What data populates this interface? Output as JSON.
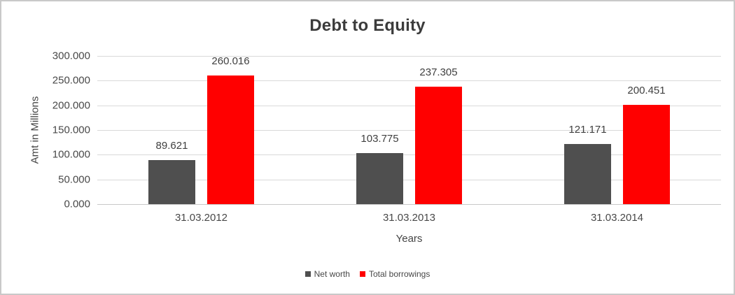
{
  "frame": {
    "border_color": "#c9c9c9",
    "background": "#ffffff"
  },
  "colors": {
    "title_text": "#3b3b3b",
    "axis_text": "#484848",
    "data_label_text": "#404040",
    "gridline": "#d9d9d9",
    "axis_line": "#c8c8c8"
  },
  "chart_data": {
    "type": "bar",
    "title": "Debt to Equity",
    "xlabel": "Years",
    "ylabel": "Amt in Millions",
    "categories": [
      "31.03.2012",
      "31.03.2013",
      "31.03.2014"
    ],
    "series": [
      {
        "name": "Net worth",
        "color": "#4f4f4f",
        "values": [
          89.621,
          103.775,
          121.171
        ],
        "labels": [
          "89.621",
          "103.775",
          "121.171"
        ]
      },
      {
        "name": "Total borrowings",
        "color": "#ff0000",
        "values": [
          260.016,
          237.305,
          200.451
        ],
        "labels": [
          "260.016",
          "237.305",
          "200.451"
        ]
      }
    ],
    "ylim": [
      0,
      300
    ],
    "yticks": [
      "300.000",
      "250.000",
      "200.000",
      "150.000",
      "100.000",
      "50.000",
      "0.000"
    ],
    "grid": true,
    "legend_position": "bottom"
  }
}
